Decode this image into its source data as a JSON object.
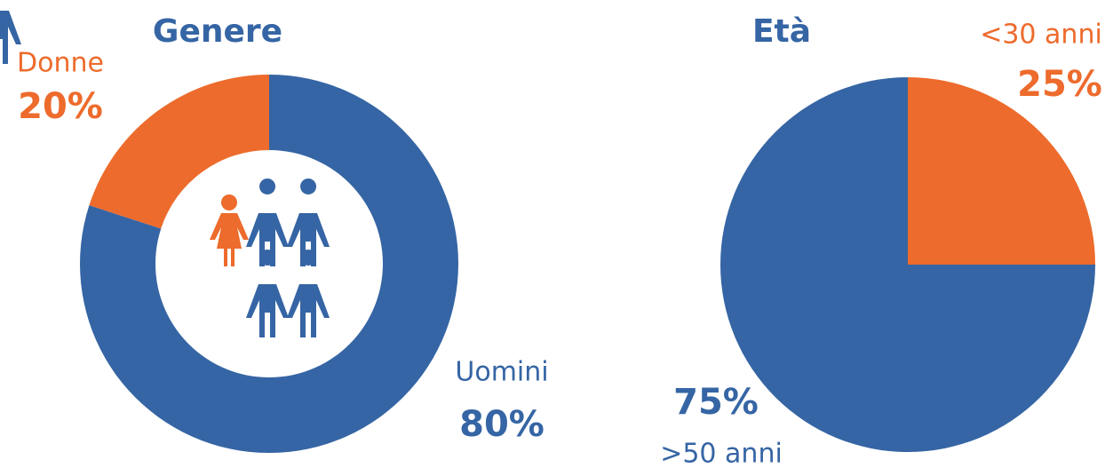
{
  "chart_data": [
    {
      "type": "donut",
      "title": "Genere",
      "categories": [
        "Uomini",
        "Donne"
      ],
      "values": [
        80,
        20
      ],
      "value_labels": [
        "80%",
        "20%"
      ],
      "colors": [
        "#3565a4",
        "#ed6b2c"
      ]
    },
    {
      "type": "pie",
      "title": "Età",
      "categories": [
        "<30 anni",
        ">50 anni"
      ],
      "values": [
        25,
        75
      ],
      "value_labels": [
        "25%",
        "75%"
      ],
      "colors": [
        "#ed6b2c",
        "#3565a4"
      ]
    }
  ]
}
